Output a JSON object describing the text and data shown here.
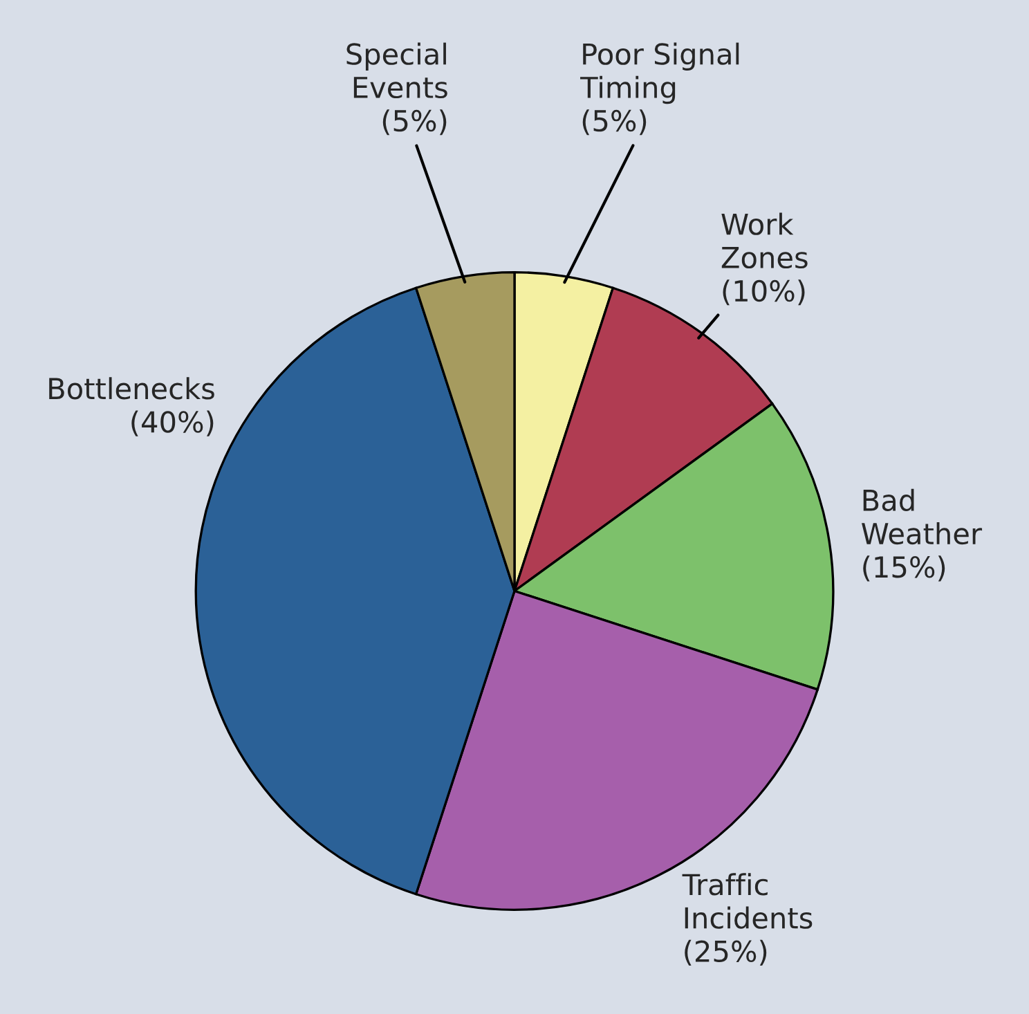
{
  "chart_data": {
    "type": "pie",
    "categories": [
      "Poor Signal\nTiming",
      "Work\nZones",
      "Bad\nWeather",
      "Traffic\nIncidents",
      "Bottlenecks",
      "Special\nEvents"
    ],
    "values": [
      5,
      10,
      15,
      25,
      40,
      5
    ],
    "value_labels": [
      "(5%)",
      "(10%)",
      "(15%)",
      "(25%)",
      "(40%)",
      "(5%)"
    ],
    "colors": [
      "#f4f0a2",
      "#b03c52",
      "#7dc16b",
      "#a65fab",
      "#2b6197",
      "#a69b5f"
    ]
  }
}
